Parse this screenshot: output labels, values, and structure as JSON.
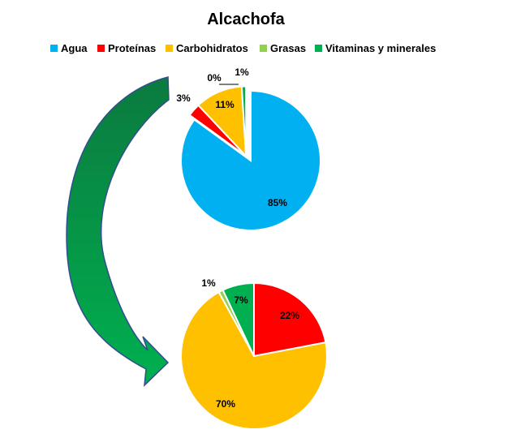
{
  "chart_data": [
    {
      "type": "pie",
      "title": "Alcachofa",
      "legend_position": "top",
      "categories": [
        "Agua",
        "Proteínas",
        "Carbohidratos",
        "Grasas",
        "Vitaminas y minerales"
      ],
      "values": [
        85,
        3,
        11,
        0,
        1
      ],
      "labels": [
        "85%",
        "3%",
        "11%",
        "0%",
        "1%"
      ],
      "colors": [
        "#00B0F0",
        "#FF0000",
        "#FFC000",
        "#92D050",
        "#00B050"
      ],
      "exploded": [
        "Proteínas",
        "Carbohidratos",
        "Grasas",
        "Vitaminas y minerales"
      ]
    },
    {
      "type": "pie",
      "categories": [
        "Proteínas",
        "Carbohidratos",
        "Grasas",
        "Vitaminas y minerales"
      ],
      "values": [
        22,
        70,
        1,
        7
      ],
      "labels": [
        "22%",
        "70%",
        "1%",
        "7%"
      ],
      "colors": [
        "#FF0000",
        "#FFC000",
        "#92D050",
        "#00B050"
      ]
    }
  ],
  "decorations": {
    "arrow_icon": "curved-arrow-icon",
    "arrow_colors": [
      "#00B050",
      "#0B7A3E"
    ],
    "arrow_outline": "#2F4F8F"
  }
}
